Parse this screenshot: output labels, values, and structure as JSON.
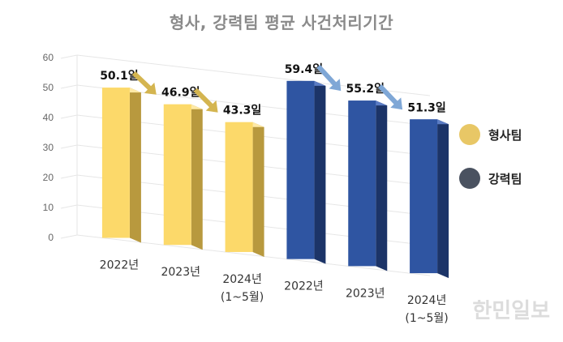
{
  "chart_data": {
    "type": "bar",
    "title": "형사, 강력팀 평균 사건처리기간",
    "ylim": [
      0,
      60
    ],
    "yticks": [
      0,
      10,
      20,
      30,
      40,
      50,
      60
    ],
    "grid": true,
    "legend_position": "right",
    "categories": [
      "2022년",
      "2023년",
      "2024년\n(1~5월)",
      "2022년",
      "2023년",
      "2024년\n(1~5월)"
    ],
    "series": [
      {
        "name": "형사팀",
        "color": "#E8C766",
        "values": [
          50.1,
          46.9,
          43.3,
          null,
          null,
          null
        ]
      },
      {
        "name": "강력팀",
        "color": "#4A5260",
        "values": [
          null,
          null,
          null,
          59.4,
          55.2,
          51.3
        ]
      }
    ],
    "data_labels": [
      "50.1일",
      "46.9일",
      "43.3일",
      "59.4일",
      "55.2일",
      "51.3일"
    ]
  },
  "watermark": "한민일보",
  "colors": {
    "yellow_front": "#FCD96A",
    "yellow_side": "#B8993E",
    "yellow_top": "#FEE9A6",
    "blue_front": "#2F55A2",
    "blue_side": "#1C3468",
    "blue_top": "#5B7CC4",
    "arrow_yellow": "#D4B550",
    "arrow_blue": "#7FA7D6"
  }
}
